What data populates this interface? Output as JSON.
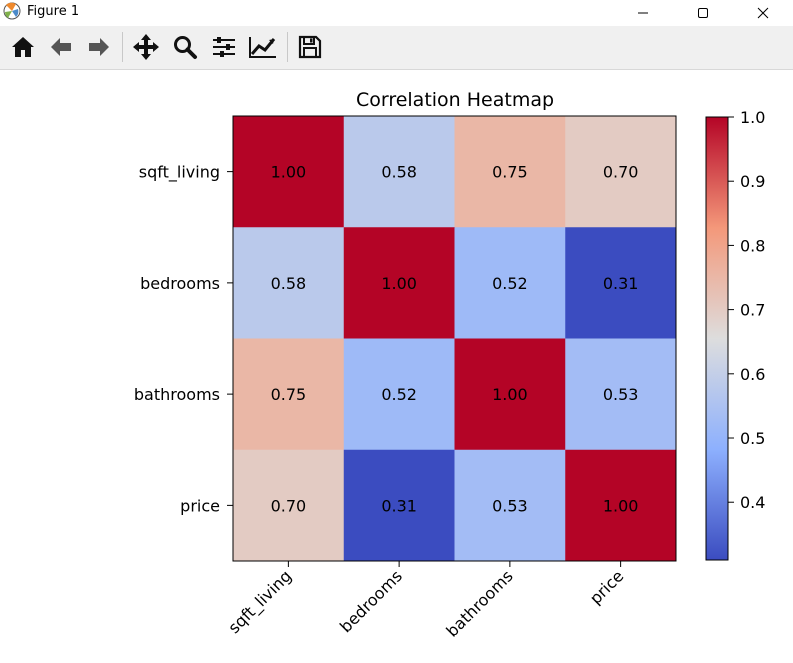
{
  "window": {
    "title": "Figure 1"
  },
  "toolbar": {
    "items": [
      {
        "name": "home-icon",
        "tooltip": ""
      },
      {
        "name": "back-arrow-icon",
        "tooltip": ""
      },
      {
        "name": "forward-arrow-icon",
        "tooltip": ""
      },
      {
        "name": "pan-icon",
        "tooltip": ""
      },
      {
        "name": "zoom-icon",
        "tooltip": ""
      },
      {
        "name": "configure-subplots-icon",
        "tooltip": ""
      },
      {
        "name": "edit-axis-icon",
        "tooltip": ""
      },
      {
        "name": "save-icon",
        "tooltip": ""
      }
    ]
  },
  "chart_data": {
    "type": "heatmap",
    "title": "Correlation Heatmap",
    "rows": [
      "sqft_living",
      "bedrooms",
      "bathrooms",
      "price"
    ],
    "columns": [
      "sqft_living",
      "bedrooms",
      "bathrooms",
      "price"
    ],
    "values": [
      [
        1.0,
        0.58,
        0.75,
        0.7
      ],
      [
        0.58,
        1.0,
        0.52,
        0.31
      ],
      [
        0.75,
        0.52,
        1.0,
        0.53
      ],
      [
        0.7,
        0.31,
        0.53,
        1.0
      ]
    ],
    "value_format": "2dp",
    "colormap": "coolwarm",
    "colorbar": {
      "range": [
        0.31,
        1.0
      ],
      "ticks": [
        0.4,
        0.5,
        0.6,
        0.7,
        0.8,
        0.9,
        1.0
      ],
      "tick_labels": [
        "0.4",
        "0.5",
        "0.6",
        "0.7",
        "0.8",
        "0.9",
        "1.0"
      ]
    },
    "x_tick_rotation": 45,
    "grid": false
  }
}
